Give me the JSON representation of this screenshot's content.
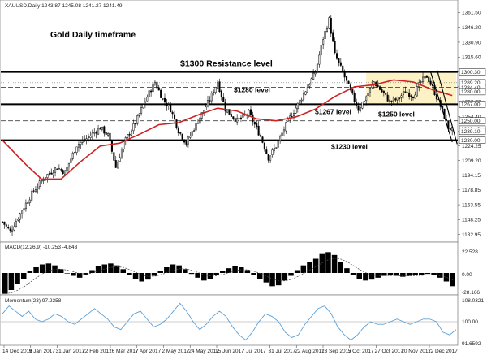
{
  "chart_data": {
    "type": "candlestick",
    "symbol_header": "XAUUSD,Daily  1243.87 1245.08 1241.27 1241.49",
    "title": "Gold Daily timeframe",
    "ylim": [
      1126,
      1366
    ],
    "y_ticks": [
      "1361.50",
      "1346.20",
      "1330.90",
      "1315.60",
      "1300.30",
      "1285.00",
      "1269.70",
      "1254.40",
      "1239.10",
      "1224.25",
      "1209.20",
      "1194.15",
      "1178.85",
      "1163.55",
      "1148.25",
      "1132.95"
    ],
    "y_tick_values": [
      1361.5,
      1346.2,
      1330.9,
      1315.6,
      1300.3,
      1285.0,
      1269.7,
      1254.4,
      1239.1,
      1224.25,
      1209.2,
      1194.15,
      1178.85,
      1163.55,
      1148.25,
      1132.95
    ],
    "x_ticks": [
      "14 Dec 2016",
      "9 Jan 2017",
      "31 Jan 2017",
      "22 Feb 2017",
      "16 Mar 2017",
      "7 Apr 2017",
      "2 May 2017",
      "24 May 2017",
      "15 Jun 2017",
      "7 Jul 2017",
      "31 Jul 2017",
      "22 Aug 2017",
      "13 Sep 2017",
      "5 Oct 2017",
      "27 Oct 2017",
      "20 Nov 2017",
      "12 Dec 2017"
    ],
    "price_path": [
      {
        "x": 0,
        "y": 1146
      },
      {
        "x": 4,
        "y": 1136
      },
      {
        "x": 10,
        "y": 1158
      },
      {
        "x": 16,
        "y": 1178
      },
      {
        "x": 22,
        "y": 1193
      },
      {
        "x": 28,
        "y": 1202
      },
      {
        "x": 32,
        "y": 1197
      },
      {
        "x": 38,
        "y": 1225
      },
      {
        "x": 44,
        "y": 1233
      },
      {
        "x": 50,
        "y": 1243
      },
      {
        "x": 54,
        "y": 1235
      },
      {
        "x": 58,
        "y": 1202
      },
      {
        "x": 62,
        "y": 1227
      },
      {
        "x": 68,
        "y": 1248
      },
      {
        "x": 74,
        "y": 1275
      },
      {
        "x": 78,
        "y": 1290
      },
      {
        "x": 82,
        "y": 1272
      },
      {
        "x": 86,
        "y": 1262
      },
      {
        "x": 90,
        "y": 1240
      },
      {
        "x": 94,
        "y": 1227
      },
      {
        "x": 100,
        "y": 1250
      },
      {
        "x": 106,
        "y": 1272
      },
      {
        "x": 110,
        "y": 1290
      },
      {
        "x": 114,
        "y": 1262
      },
      {
        "x": 120,
        "y": 1250
      },
      {
        "x": 126,
        "y": 1258
      },
      {
        "x": 132,
        "y": 1234
      },
      {
        "x": 136,
        "y": 1212
      },
      {
        "x": 140,
        "y": 1224
      },
      {
        "x": 146,
        "y": 1250
      },
      {
        "x": 152,
        "y": 1270
      },
      {
        "x": 156,
        "y": 1285
      },
      {
        "x": 160,
        "y": 1300
      },
      {
        "x": 164,
        "y": 1335
      },
      {
        "x": 167,
        "y": 1354
      },
      {
        "x": 170,
        "y": 1318
      },
      {
        "x": 174,
        "y": 1300
      },
      {
        "x": 178,
        "y": 1280
      },
      {
        "x": 182,
        "y": 1262
      },
      {
        "x": 186,
        "y": 1275
      },
      {
        "x": 190,
        "y": 1290
      },
      {
        "x": 194,
        "y": 1280
      },
      {
        "x": 198,
        "y": 1270
      },
      {
        "x": 202,
        "y": 1272
      },
      {
        "x": 206,
        "y": 1280
      },
      {
        "x": 210,
        "y": 1276
      },
      {
        "x": 214,
        "y": 1290
      },
      {
        "x": 217,
        "y": 1296
      },
      {
        "x": 220,
        "y": 1284
      },
      {
        "x": 224,
        "y": 1265
      },
      {
        "x": 228,
        "y": 1243
      },
      {
        "x": 230,
        "y": 1241
      }
    ],
    "moving_average": [
      {
        "x": 0,
        "y": 1230
      },
      {
        "x": 12,
        "y": 1205
      },
      {
        "x": 20,
        "y": 1190
      },
      {
        "x": 30,
        "y": 1190
      },
      {
        "x": 40,
        "y": 1208
      },
      {
        "x": 50,
        "y": 1224
      },
      {
        "x": 60,
        "y": 1227
      },
      {
        "x": 70,
        "y": 1236
      },
      {
        "x": 80,
        "y": 1246
      },
      {
        "x": 90,
        "y": 1248
      },
      {
        "x": 100,
        "y": 1256
      },
      {
        "x": 110,
        "y": 1263
      },
      {
        "x": 120,
        "y": 1260
      },
      {
        "x": 130,
        "y": 1252
      },
      {
        "x": 140,
        "y": 1250
      },
      {
        "x": 150,
        "y": 1254
      },
      {
        "x": 160,
        "y": 1262
      },
      {
        "x": 170,
        "y": 1275
      },
      {
        "x": 180,
        "y": 1285
      },
      {
        "x": 190,
        "y": 1287
      },
      {
        "x": 200,
        "y": 1292
      },
      {
        "x": 210,
        "y": 1290
      },
      {
        "x": 220,
        "y": 1282
      },
      {
        "x": 230,
        "y": 1276
      }
    ],
    "levels": [
      {
        "label": "$1300 Resistance level",
        "value": 1300.3,
        "style": "thick"
      },
      {
        "label": "$1280 level",
        "value": 1284.4,
        "style": "dashed"
      },
      {
        "label": "$1267 level",
        "value": 1267.0,
        "style": "thick"
      },
      {
        "label": "$1250 level",
        "value": 1250.0,
        "style": "dashed"
      },
      {
        "label": "$1230 level",
        "value": 1230.0,
        "style": "thick"
      }
    ],
    "price_box_labels": [
      {
        "text": "1300.30",
        "value": 1300.3
      },
      {
        "text": "1289.20",
        "value": 1289.2
      },
      {
        "text": "1284.40",
        "value": 1284.4
      },
      {
        "text": "1280.00",
        "value": 1280.0
      },
      {
        "text": "1267.00",
        "value": 1267.0
      },
      {
        "text": "1250.00",
        "value": 1250.0
      },
      {
        "text": "1241.49",
        "value": 1241.49
      },
      {
        "text": "1239.10",
        "value": 1239.1
      },
      {
        "text": "1230.00",
        "value": 1230.0
      }
    ],
    "highlight_zone": {
      "x_from": 186,
      "x_to": 232,
      "y_low": 1267,
      "y_high": 1300.3,
      "color": "#fcf2c6"
    },
    "trendline": {
      "points": [
        {
          "x": 219,
          "y": 1300
        },
        {
          "x": 230,
          "y": 1228
        }
      ]
    },
    "macd": {
      "label": "MACD(12,26,9) -10.253 -4.843",
      "y_ticks": [
        "22.528",
        "0.00",
        "-28.166"
      ],
      "hist_bins": [
        -22,
        -18,
        -12,
        -6,
        2,
        6,
        9,
        10,
        8,
        4,
        0,
        -3,
        -5,
        -2,
        3,
        7,
        9,
        10,
        8,
        4,
        -2,
        -6,
        -9,
        -7,
        -3,
        2,
        6,
        9,
        8,
        4,
        -1,
        -5,
        -8,
        -6,
        -2,
        2,
        5,
        7,
        6,
        3,
        -2,
        -6,
        -10,
        -14,
        -13,
        -8,
        -3,
        3,
        8,
        12,
        15,
        20,
        22,
        19,
        12,
        5,
        -2,
        -6,
        -8,
        -7,
        -5,
        -3,
        -2,
        -3,
        -4,
        -3,
        -2,
        -2,
        -1,
        -2,
        -5,
        -9,
        -14
      ]
    },
    "momentum": {
      "label": "Momentum(23) 97.2358",
      "y_ticks": [
        "108.0321",
        "100.00",
        "91.6592"
      ],
      "values": [
        103,
        106,
        104,
        102,
        104,
        101,
        100,
        101,
        103,
        102,
        100,
        99,
        101,
        103,
        105,
        103,
        101,
        98,
        97,
        100,
        103,
        104,
        101,
        98,
        99,
        101,
        104,
        107,
        104,
        100,
        97,
        99,
        102,
        104,
        102,
        98,
        95,
        93,
        96,
        100,
        103,
        102,
        100,
        96,
        94,
        95,
        99,
        102,
        105,
        106,
        103,
        98,
        95,
        93,
        95,
        98,
        100,
        99,
        99,
        100,
        101,
        100,
        99,
        100,
        101,
        101,
        100,
        96,
        95,
        97
      ],
      "ylim": [
        91.6592,
        108.0321
      ]
    },
    "colors": {
      "price": "#000000",
      "ma": "#cc2222",
      "momentum": "#5aa0d8",
      "zone": "#fcf2c6",
      "macd_signal": "#444444"
    }
  }
}
